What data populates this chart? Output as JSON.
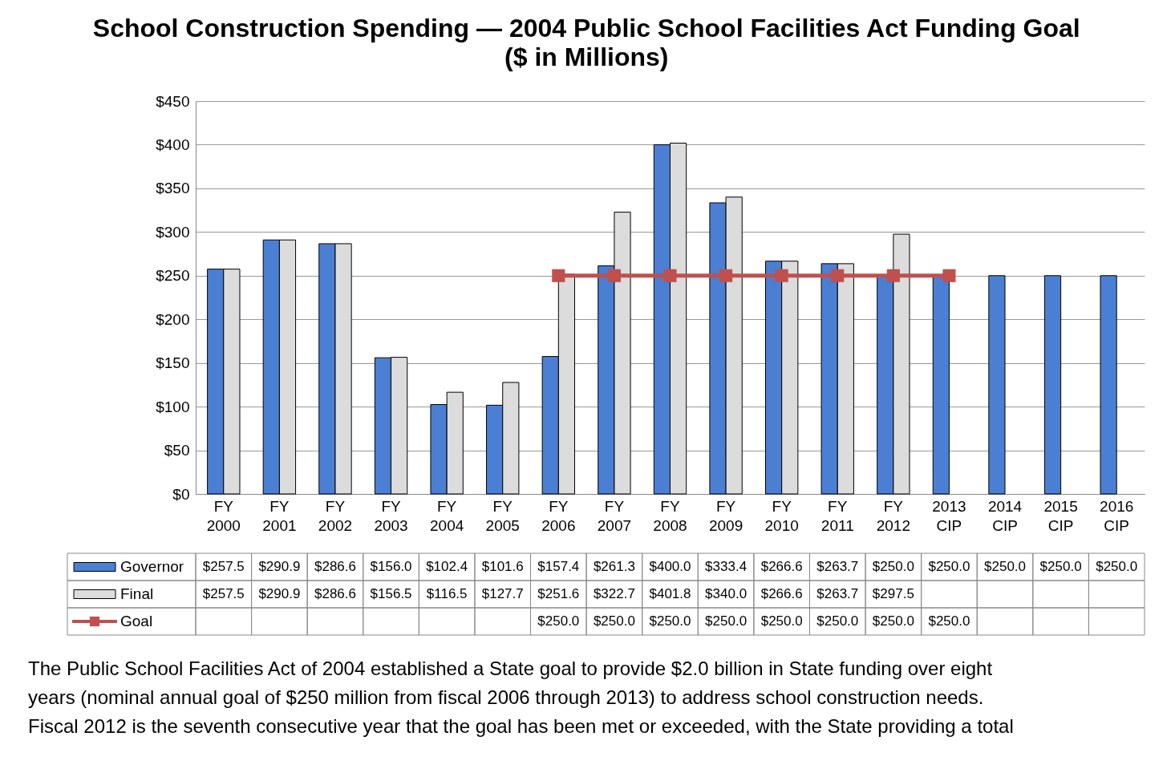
{
  "chart_data": {
    "type": "bar",
    "title": "School Construction Spending  —  2004 Public School Facilities Act Funding Goal",
    "subtitle": "($ in Millions)",
    "categories": [
      "FY 2000",
      "FY 2001",
      "FY 2002",
      "FY 2003",
      "FY 2004",
      "FY 2005",
      "FY 2006",
      "FY 2007",
      "FY 2008",
      "FY 2009",
      "FY 2010",
      "FY 2011",
      "FY 2012",
      "2013 CIP",
      "2014 CIP",
      "2015 CIP",
      "2016 CIP"
    ],
    "series": [
      {
        "name": "Governor",
        "type": "bar",
        "color": "#4a7fd4",
        "values": [
          257.5,
          290.9,
          286.6,
          156.0,
          102.4,
          101.6,
          157.4,
          261.3,
          400.0,
          333.4,
          266.6,
          263.7,
          250.0,
          250.0,
          250.0,
          250.0,
          250.0
        ],
        "value_labels": [
          "$257.5",
          "$290.9",
          "$286.6",
          "$156.0",
          "$102.4",
          "$101.6",
          "$157.4",
          "$261.3",
          "$400.0",
          "$333.4",
          "$266.6",
          "$263.7",
          "$250.0",
          "$250.0",
          "$250.0",
          "$250.0",
          "$250.0"
        ]
      },
      {
        "name": "Final",
        "type": "bar",
        "color": "#dcdcdc",
        "values": [
          257.5,
          290.9,
          286.6,
          156.5,
          116.5,
          127.7,
          251.6,
          322.7,
          401.8,
          340.0,
          266.6,
          263.7,
          297.5,
          null,
          null,
          null,
          null
        ],
        "value_labels": [
          "$257.5",
          "$290.9",
          "$286.6",
          "$156.5",
          "$116.5",
          "$127.7",
          "$251.6",
          "$322.7",
          "$401.8",
          "$340.0",
          "$266.6",
          "$263.7",
          "$297.5",
          null,
          null,
          null,
          null
        ]
      },
      {
        "name": "Goal",
        "type": "line",
        "color": "#c0504d",
        "values": [
          null,
          null,
          null,
          null,
          null,
          null,
          250.0,
          250.0,
          250.0,
          250.0,
          250.0,
          250.0,
          250.0,
          250.0,
          null,
          null,
          null
        ],
        "value_labels": [
          null,
          null,
          null,
          null,
          null,
          null,
          "$250.0",
          "$250.0",
          "$250.0",
          "$250.0",
          "$250.0",
          "$250.0",
          "$250.0",
          "$250.0",
          null,
          null,
          null
        ]
      }
    ],
    "ylim": [
      0,
      450
    ],
    "yticks": [
      {
        "value": 0,
        "label": "$0"
      },
      {
        "value": 50,
        "label": "$50"
      },
      {
        "value": 100,
        "label": "$100"
      },
      {
        "value": 150,
        "label": "$150"
      },
      {
        "value": 200,
        "label": "$200"
      },
      {
        "value": 250,
        "label": "$250"
      },
      {
        "value": 300,
        "label": "$300"
      },
      {
        "value": 350,
        "label": "$350"
      },
      {
        "value": 400,
        "label": "$400"
      },
      {
        "value": 450,
        "label": "$450"
      }
    ],
    "grid": "y",
    "legend": "bottom",
    "marker": "square",
    "annotations": [
      "The Public School Facilities Act of 2004 established a State goal to provide $2.0 billion in State funding over eight",
      "years (nominal annual goal of $250 million from fiscal 2006 through 2013) to address school construction needs.",
      "Fiscal 2012 is the seventh consecutive year that the goal has been met or exceeded, with the State providing a total"
    ]
  }
}
